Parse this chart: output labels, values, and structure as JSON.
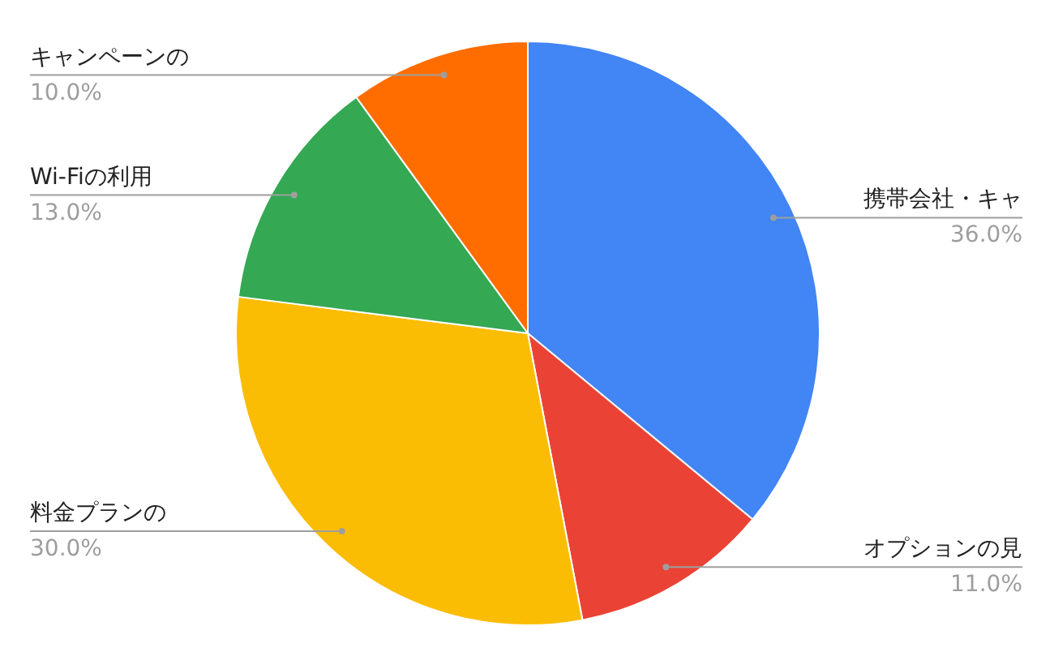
{
  "chart_data": {
    "type": "pie",
    "categories": [
      "携帯会社・キャ",
      "オプションの見",
      "料金プランの",
      "Wi-Fiの利用",
      "キャンペーンの"
    ],
    "values": [
      36.0,
      11.0,
      30.0,
      13.0,
      10.0
    ],
    "colors": [
      "#4285f4",
      "#ea4335",
      "#fbbc04",
      "#34a853",
      "#ff6d01"
    ],
    "value_labels": [
      "36.0%",
      "11.0%",
      "30.0%",
      "13.0%",
      "10.0%"
    ]
  }
}
